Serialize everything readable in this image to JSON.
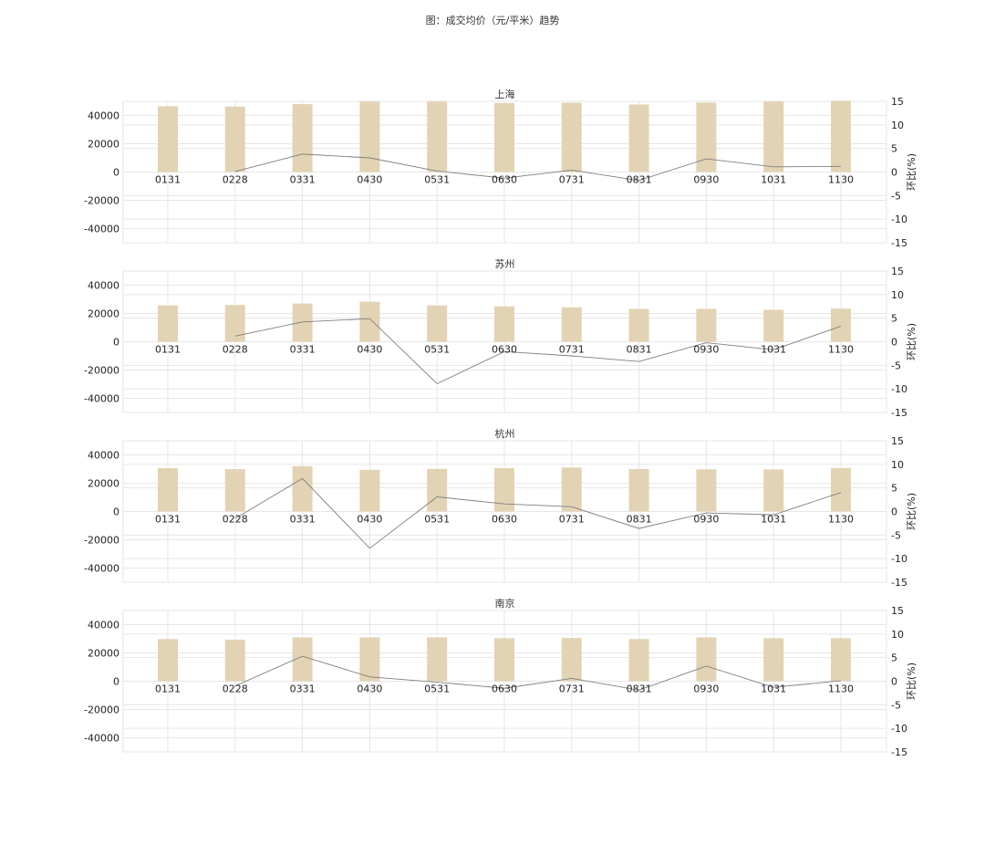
{
  "figure_title": "图：成交均价（元/平米）趋势",
  "chart_data": [
    {
      "type": "bar",
      "title": "上海",
      "categories": [
        "0131",
        "0228",
        "0331",
        "0430",
        "0531",
        "0630",
        "0731",
        "0831",
        "0930",
        "1031",
        "1130"
      ],
      "bar_values": [
        46500,
        46300,
        48000,
        49800,
        49800,
        48800,
        49000,
        47700,
        49100,
        49800,
        50400
      ],
      "line_values": [
        null,
        0.1,
        3.8,
        3.0,
        0.2,
        -1.3,
        0.4,
        -1.8,
        2.8,
        1.1,
        1.2
      ],
      "yticks_left": [
        40000,
        20000,
        0,
        -20000,
        -40000
      ],
      "yticks_right": [
        15,
        10,
        5,
        0,
        -5,
        -10,
        -15
      ],
      "ylim_left": [
        -50000,
        50000
      ],
      "ylim_right": [
        -15,
        15
      ],
      "y2label": "环比(%)",
      "grid": true
    },
    {
      "type": "bar",
      "title": "苏州",
      "categories": [
        "0131",
        "0228",
        "0331",
        "0430",
        "0531",
        "0630",
        "0731",
        "0831",
        "0930",
        "1031",
        "1130"
      ],
      "bar_values": [
        25700,
        26000,
        27000,
        28300,
        25700,
        25000,
        24300,
        23200,
        23200,
        22600,
        23400
      ],
      "line_values": [
        null,
        1.2,
        4.2,
        4.9,
        -8.9,
        -2.1,
        -3.0,
        -4.2,
        -0.2,
        -1.7,
        3.3
      ],
      "yticks_left": [
        40000,
        20000,
        0,
        -20000,
        -40000
      ],
      "yticks_right": [
        15,
        10,
        5,
        0,
        -5,
        -10,
        -15
      ],
      "ylim_left": [
        -50000,
        50000
      ],
      "ylim_right": [
        -15,
        15
      ],
      "y2label": "环比(%)",
      "grid": true
    },
    {
      "type": "bar",
      "title": "杭州",
      "categories": [
        "0131",
        "0228",
        "0331",
        "0430",
        "0531",
        "0630",
        "0731",
        "0831",
        "0930",
        "1031",
        "1130"
      ],
      "bar_values": [
        30600,
        30000,
        32000,
        29400,
        30100,
        30700,
        31100,
        30000,
        29800,
        29700,
        30700
      ],
      "line_values": [
        null,
        -1.5,
        7.0,
        -7.8,
        3.1,
        1.6,
        1.0,
        -3.6,
        -0.3,
        -0.7,
        4.0
      ],
      "yticks_left": [
        40000,
        20000,
        0,
        -20000,
        -40000
      ],
      "yticks_right": [
        15,
        10,
        5,
        0,
        -5,
        -10,
        -15
      ],
      "ylim_left": [
        -50000,
        50000
      ],
      "ylim_right": [
        -15,
        15
      ],
      "y2label": "环比(%)",
      "grid": true
    },
    {
      "type": "bar",
      "title": "南京",
      "categories": [
        "0131",
        "0228",
        "0331",
        "0430",
        "0531",
        "0630",
        "0731",
        "0831",
        "0930",
        "1031",
        "1130"
      ],
      "bar_values": [
        29800,
        29400,
        31000,
        31000,
        31000,
        30400,
        30600,
        29800,
        31000,
        30400,
        30400
      ],
      "line_values": [
        null,
        -1.0,
        5.3,
        0.9,
        -0.2,
        -1.5,
        0.6,
        -1.9,
        3.2,
        -1.3,
        0.1
      ],
      "yticks_left": [
        40000,
        20000,
        0,
        -20000,
        -40000
      ],
      "yticks_right": [
        15,
        10,
        5,
        0,
        -5,
        -10,
        -15
      ],
      "ylim_left": [
        -50000,
        50000
      ],
      "ylim_right": [
        -15,
        15
      ],
      "y2label": "环比(%)",
      "grid": true
    }
  ],
  "colors": {
    "bar": "#e2d3b4",
    "line": "#7f7f7f",
    "grid": "#e6e6e6",
    "text": "#222222",
    "title": "#333333"
  }
}
